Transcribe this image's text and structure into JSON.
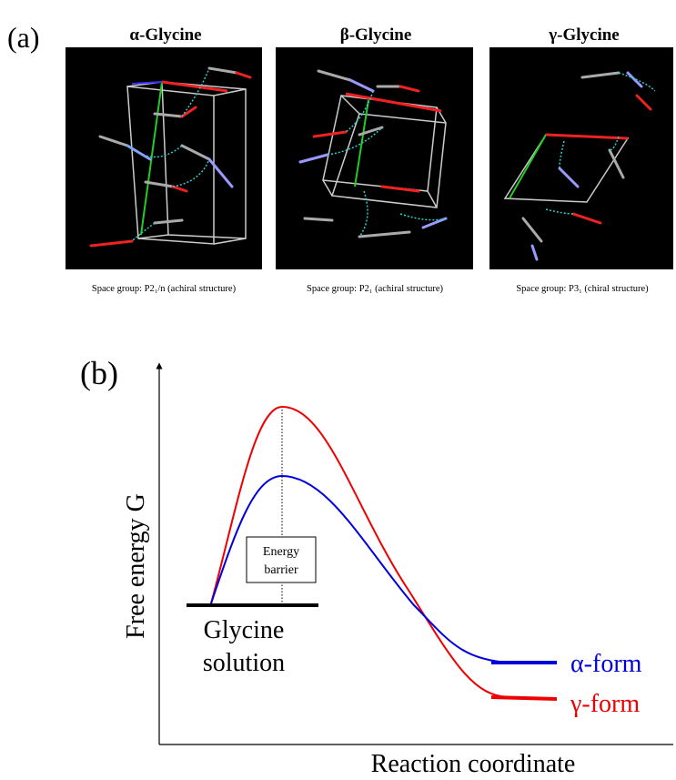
{
  "panel_a": {
    "label": "(a)",
    "structures": [
      {
        "title": "α-Glycine",
        "caption": "Space group: P2₁/n (achiral structure)"
      },
      {
        "title": "β-Glycine",
        "caption": "Space group: P2₁ (achiral structure)"
      },
      {
        "title": "γ-Glycine",
        "caption": "Space group: P3₁ (chiral structure)"
      }
    ]
  },
  "panel_b": {
    "label": "(b)",
    "y_axis_label": "Free energy G",
    "x_axis_label": "Reaction coordinate",
    "barrier_label": [
      "Energy",
      "barrier"
    ],
    "start_label": [
      "Glycine",
      "solution"
    ],
    "forms": [
      "α-form",
      "γ-form"
    ]
  }
}
